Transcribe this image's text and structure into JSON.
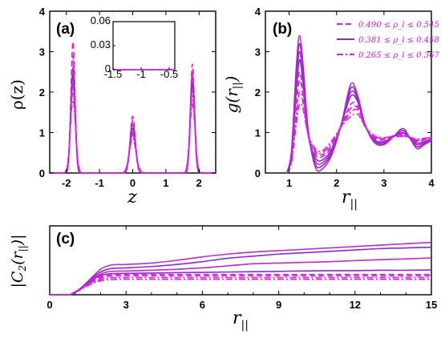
{
  "colors": {
    "magenta": "#e020e0",
    "magenta_mid": "#c02ac8",
    "violet": "#8a2ad0",
    "axis": "#000000"
  },
  "chart_data": [
    {
      "id": "a",
      "type": "line",
      "panel_label": "(a)",
      "xlabel": "z",
      "ylabel": "ρ(z)",
      "xlim": [
        -2.5,
        2.5
      ],
      "ylim": [
        0,
        4
      ],
      "xticks": [
        -2,
        -1,
        0,
        1,
        2
      ],
      "yticks": [
        0,
        1,
        2,
        3,
        4
      ],
      "peak_centers": [
        -1.8,
        0.0,
        1.8
      ],
      "series": [
        {
          "group": "0.490 ≤ ρ_l ≤ 0.545",
          "style": "dashed",
          "heights": [
            3.25,
            1.4,
            2.7
          ],
          "widths": [
            0.06,
            0.075,
            0.06
          ]
        },
        {
          "group": "0.490 ≤ ρ_l ≤ 0.545",
          "style": "dashed",
          "heights": [
            2.9,
            1.3,
            2.5
          ],
          "widths": [
            0.065,
            0.08,
            0.065
          ]
        },
        {
          "group": "0.381 ≤ ρ_l ≤ 0.458",
          "style": "solid",
          "heights": [
            2.6,
            1.2,
            2.4
          ],
          "widths": [
            0.065,
            0.085,
            0.065
          ]
        },
        {
          "group": "0.381 ≤ ρ_l ≤ 0.458",
          "style": "solid",
          "heights": [
            2.4,
            1.1,
            2.2
          ],
          "widths": [
            0.07,
            0.085,
            0.07
          ]
        },
        {
          "group": "0.381 ≤ ρ_l ≤ 0.458",
          "style": "solid",
          "heights": [
            2.2,
            1.0,
            2.1
          ],
          "widths": [
            0.07,
            0.09,
            0.07
          ]
        },
        {
          "group": "0.265 ≤ ρ_l ≤ 0.367",
          "style": "dashdot",
          "heights": [
            2.0,
            0.95,
            1.9
          ],
          "widths": [
            0.075,
            0.095,
            0.075
          ]
        },
        {
          "group": "0.265 ≤ ρ_l ≤ 0.367",
          "style": "dashdot",
          "heights": [
            1.8,
            0.85,
            1.7
          ],
          "widths": [
            0.08,
            0.1,
            0.08
          ]
        }
      ],
      "inset": {
        "xlim": [
          -1.5,
          -0.4
        ],
        "ylim": [
          0,
          0.06
        ],
        "xticks": [
          -1.5,
          -1,
          -0.5
        ],
        "yticks": [
          0,
          0.03,
          0.06
        ]
      }
    },
    {
      "id": "b",
      "type": "line",
      "panel_label": "(b)",
      "xlabel": "r_||",
      "ylabel": "g(r_||)",
      "xlim": [
        0.5,
        4
      ],
      "ylim": [
        0,
        4
      ],
      "xticks": [
        1,
        2,
        3,
        4
      ],
      "yticks": [
        0,
        1,
        2,
        3,
        4
      ],
      "legend": {
        "placement": "top-right",
        "entries": [
          {
            "label": "0.490 ≤ ρ_l ≤ 0.545",
            "style": "dashed"
          },
          {
            "label": "0.381 ≤ ρ_l ≤ 0.458",
            "style": "solid"
          },
          {
            "label": "0.265 ≤ ρ_l ≤ 0.367",
            "style": "dashdot"
          }
        ]
      },
      "series": [
        {
          "group": "0.381 ≤ ρ_l ≤ 0.458",
          "style": "solid",
          "x": [
            0.95,
            1.05,
            1.15,
            1.22,
            1.3,
            1.4,
            1.55,
            1.7,
            1.9,
            2.1,
            2.3,
            2.45,
            2.6,
            2.8,
            3.0,
            3.2,
            3.4,
            3.55,
            3.7,
            3.85,
            4.0
          ],
          "y": [
            0,
            0.55,
            2.6,
            3.4,
            2.6,
            1.1,
            0.15,
            0.1,
            0.45,
            1.2,
            2.2,
            1.9,
            1.2,
            0.75,
            0.7,
            0.9,
            1.1,
            0.85,
            0.6,
            0.7,
            0.8
          ]
        },
        {
          "group": "0.381 ≤ ρ_l ≤ 0.458",
          "style": "solid",
          "x": [
            0.95,
            1.05,
            1.15,
            1.22,
            1.3,
            1.4,
            1.55,
            1.7,
            1.9,
            2.1,
            2.3,
            2.45,
            2.6,
            2.8,
            3.0,
            3.2,
            3.4,
            3.55,
            3.7,
            3.85,
            4.0
          ],
          "y": [
            0,
            0.5,
            2.4,
            3.2,
            2.45,
            1.05,
            0.22,
            0.18,
            0.5,
            1.2,
            2.1,
            1.85,
            1.2,
            0.78,
            0.72,
            0.9,
            1.05,
            0.85,
            0.65,
            0.72,
            0.8
          ]
        },
        {
          "group": "0.381 ≤ ρ_l ≤ 0.458",
          "style": "solid",
          "x": [
            0.95,
            1.05,
            1.15,
            1.22,
            1.3,
            1.4,
            1.55,
            1.7,
            1.9,
            2.1,
            2.3,
            2.45,
            2.6,
            2.8,
            3.0,
            3.2,
            3.4,
            3.55,
            3.7,
            3.85,
            4.0
          ],
          "y": [
            0,
            0.45,
            2.2,
            3.0,
            2.3,
            1.0,
            0.3,
            0.25,
            0.55,
            1.2,
            2.0,
            1.8,
            1.2,
            0.8,
            0.75,
            0.9,
            1.0,
            0.85,
            0.7,
            0.75,
            0.82
          ]
        },
        {
          "group": "0.381 ≤ ρ_l ≤ 0.458",
          "style": "solid",
          "x": [
            0.95,
            1.05,
            1.15,
            1.22,
            1.3,
            1.4,
            1.55,
            1.7,
            1.9,
            2.1,
            2.3,
            2.45,
            2.6,
            2.8,
            3.0,
            3.2,
            3.4,
            3.55,
            3.7,
            3.85,
            4.0
          ],
          "y": [
            0,
            0.4,
            2.0,
            2.8,
            2.15,
            0.95,
            0.38,
            0.32,
            0.6,
            1.2,
            1.9,
            1.75,
            1.18,
            0.82,
            0.78,
            0.9,
            0.98,
            0.88,
            0.74,
            0.78,
            0.84
          ]
        },
        {
          "group": "0.490 ≤ ρ_l ≤ 0.545",
          "style": "dashed",
          "x": [
            0.95,
            1.05,
            1.15,
            1.22,
            1.3,
            1.4,
            1.55,
            1.7,
            1.9,
            2.1,
            2.3,
            2.45,
            2.6,
            2.8,
            3.0,
            3.2,
            3.4,
            3.55,
            3.7,
            3.85,
            4.0
          ],
          "y": [
            0,
            0.35,
            1.8,
            2.5,
            1.95,
            0.95,
            0.45,
            0.4,
            0.65,
            1.15,
            1.7,
            1.65,
            1.15,
            0.85,
            0.82,
            0.92,
            0.95,
            0.88,
            0.78,
            0.82,
            0.86
          ]
        },
        {
          "group": "0.490 ≤ ρ_l ≤ 0.545",
          "style": "dashed",
          "x": [
            0.95,
            1.05,
            1.15,
            1.22,
            1.3,
            1.4,
            1.55,
            1.7,
            1.9,
            2.1,
            2.3,
            2.45,
            2.6,
            2.8,
            3.0,
            3.2,
            3.4,
            3.55,
            3.7,
            3.85,
            4.0
          ],
          "y": [
            0,
            0.3,
            1.6,
            2.3,
            1.85,
            0.95,
            0.5,
            0.45,
            0.7,
            1.15,
            1.6,
            1.6,
            1.15,
            0.88,
            0.85,
            0.92,
            0.93,
            0.88,
            0.8,
            0.84,
            0.88
          ]
        },
        {
          "group": "0.265 ≤ ρ_l ≤ 0.367",
          "style": "dashdot",
          "x": [
            0.95,
            1.05,
            1.15,
            1.22,
            1.3,
            1.4,
            1.55,
            1.7,
            1.9,
            2.1,
            2.3,
            2.45,
            2.6,
            2.8,
            3.0,
            3.2,
            3.4,
            3.55,
            3.7,
            3.85,
            4.0
          ],
          "y": [
            0,
            0.28,
            1.4,
            2.0,
            1.7,
            0.95,
            0.55,
            0.5,
            0.75,
            1.15,
            1.5,
            1.55,
            1.15,
            0.9,
            0.86,
            0.9,
            0.92,
            0.88,
            0.82,
            0.85,
            0.88
          ]
        },
        {
          "group": "0.265 ≤ ρ_l ≤ 0.367",
          "style": "dashdot",
          "x": [
            0.95,
            1.05,
            1.15,
            1.22,
            1.3,
            1.4,
            1.55,
            1.7,
            1.9,
            2.1,
            2.3,
            2.45,
            2.6,
            2.8,
            3.0,
            3.2,
            3.4,
            3.55,
            3.7,
            3.85,
            4.0
          ],
          "y": [
            0,
            0.25,
            1.2,
            1.7,
            1.55,
            0.95,
            0.6,
            0.55,
            0.8,
            1.15,
            1.4,
            1.45,
            1.15,
            0.92,
            0.88,
            0.9,
            0.9,
            0.88,
            0.84,
            0.86,
            0.88
          ]
        }
      ]
    },
    {
      "id": "c",
      "type": "line",
      "panel_label": "(c)",
      "xlabel": "r_||",
      "ylabel": "|C_2(r_||)|",
      "xlim": [
        0,
        15
      ],
      "ylim": [
        0,
        10
      ],
      "xticks": [
        0,
        3,
        6,
        9,
        12,
        15
      ],
      "yticks": [],
      "series": [
        {
          "group": "0.381 ≤ ρ_l ≤ 0.458",
          "style": "solid",
          "x": [
            0.8,
            1.2,
            1.6,
            2.0,
            2.4,
            3.0,
            4.0,
            5.0,
            6.0,
            7.0,
            8.0,
            9.0,
            10.0,
            11.0,
            12.0,
            13.0,
            14.0,
            15.0
          ],
          "y": [
            0,
            0.9,
            2.3,
            3.7,
            4.3,
            4.4,
            4.6,
            5.0,
            5.5,
            5.9,
            6.2,
            6.4,
            6.6,
            6.8,
            7.0,
            7.2,
            7.4,
            7.6
          ]
        },
        {
          "group": "0.381 ≤ ρ_l ≤ 0.458",
          "style": "solid",
          "x": [
            0.8,
            1.2,
            1.6,
            2.0,
            2.4,
            3.0,
            4.0,
            5.0,
            6.0,
            7.0,
            8.0,
            9.0,
            10.0,
            11.0,
            12.0,
            13.0,
            14.0,
            15.0
          ],
          "y": [
            0,
            0.9,
            2.2,
            3.3,
            3.8,
            3.9,
            4.1,
            4.4,
            4.8,
            5.3,
            5.6,
            5.9,
            6.1,
            6.3,
            6.5,
            6.7,
            6.8,
            6.9
          ]
        },
        {
          "group": "0.381 ≤ ρ_l ≤ 0.458",
          "style": "solid",
          "x": [
            0.8,
            1.2,
            1.6,
            2.0,
            2.4,
            3.0,
            4.0,
            5.0,
            6.0,
            7.0,
            8.0,
            9.0,
            10.0,
            11.0,
            12.0,
            13.0,
            14.0,
            15.0
          ],
          "y": [
            0,
            0.8,
            2.0,
            3.0,
            3.4,
            3.45,
            3.55,
            3.7,
            3.9,
            4.2,
            4.5,
            4.6,
            4.7,
            4.8,
            4.95,
            5.1,
            5.2,
            5.35
          ]
        },
        {
          "group": "0.381 ≤ ρ_l ≤ 0.458",
          "style": "solid",
          "x": [
            0.8,
            1.2,
            1.6,
            2.0,
            2.4,
            3.0,
            4.0,
            5.0,
            6.0,
            7.0,
            8.0,
            9.0,
            10.0,
            11.0,
            12.0,
            13.0,
            14.0,
            15.0
          ],
          "y": [
            0,
            0.8,
            1.9,
            2.8,
            3.05,
            3.1,
            3.15,
            3.2,
            3.25,
            3.3,
            3.35,
            3.4,
            3.45,
            3.5,
            3.5,
            3.55,
            3.55,
            3.6
          ]
        },
        {
          "group": "0.490 ≤ ρ_l ≤ 0.545",
          "style": "dashed",
          "x": [
            0.8,
            1.2,
            1.6,
            2.0,
            2.4,
            3.0,
            4.0,
            5.0,
            6.0,
            7.0,
            8.0,
            9.0,
            10.0,
            11.0,
            12.0,
            13.0,
            14.0,
            15.0
          ],
          "y": [
            0,
            0.8,
            1.8,
            2.6,
            2.9,
            2.95,
            2.95,
            2.95,
            2.95,
            2.95,
            2.95,
            2.95,
            2.95,
            2.95,
            2.95,
            2.95,
            2.95,
            2.95
          ]
        },
        {
          "group": "0.490 ≤ ρ_l ≤ 0.545",
          "style": "dashed",
          "x": [
            0.8,
            1.2,
            1.6,
            2.0,
            2.4,
            3.0,
            4.0,
            5.0,
            6.0,
            7.0,
            8.0,
            9.0,
            10.0,
            11.0,
            12.0,
            13.0,
            14.0,
            15.0
          ],
          "y": [
            0,
            0.8,
            1.7,
            2.4,
            2.7,
            2.75,
            2.75,
            2.75,
            2.75,
            2.75,
            2.75,
            2.75,
            2.75,
            2.75,
            2.75,
            2.75,
            2.75,
            2.75
          ]
        },
        {
          "group": "0.265 ≤ ρ_l ≤ 0.367",
          "style": "dashdot",
          "x": [
            0.8,
            1.2,
            1.6,
            2.0,
            2.4,
            3.0,
            4.0,
            5.0,
            6.0,
            7.0,
            8.0,
            9.0,
            10.0,
            11.0,
            12.0,
            13.0,
            14.0,
            15.0
          ],
          "y": [
            0,
            0.8,
            1.6,
            2.2,
            2.45,
            2.5,
            2.5,
            2.5,
            2.5,
            2.5,
            2.5,
            2.5,
            2.5,
            2.5,
            2.5,
            2.5,
            2.5,
            2.5
          ]
        },
        {
          "group": "0.265 ≤ ρ_l ≤ 0.367",
          "style": "dashdot",
          "x": [
            0.8,
            1.2,
            1.6,
            2.0,
            2.4,
            3.0,
            4.0,
            5.0,
            6.0,
            7.0,
            8.0,
            9.0,
            10.0,
            11.0,
            12.0,
            13.0,
            14.0,
            15.0
          ],
          "y": [
            0,
            0.7,
            1.5,
            2.0,
            2.2,
            2.25,
            2.25,
            2.25,
            2.25,
            2.25,
            2.25,
            2.25,
            2.25,
            2.25,
            2.25,
            2.25,
            2.25,
            2.25
          ]
        }
      ]
    }
  ]
}
